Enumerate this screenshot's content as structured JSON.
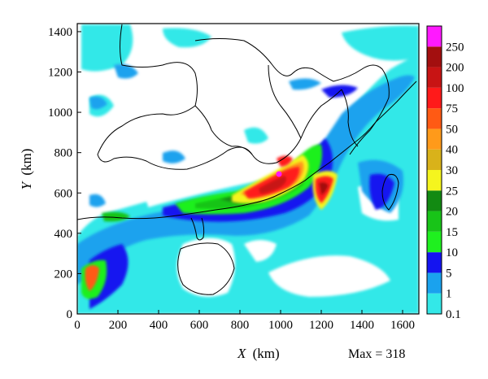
{
  "chart_data": {
    "type": "heatmap",
    "title": "",
    "xlabel_var": "X",
    "xlabel_unit": "(km)",
    "ylabel_var": "Y",
    "ylabel_unit": "(km)",
    "xlim": [
      0,
      1680
    ],
    "ylim": [
      0,
      1440
    ],
    "x_ticks": [
      0,
      200,
      400,
      600,
      800,
      1000,
      1200,
      1400,
      1600
    ],
    "y_ticks": [
      0,
      200,
      400,
      600,
      800,
      1000,
      1200,
      1400
    ],
    "annotation": "Max = 318",
    "colorbar": {
      "levels": [
        "0.1",
        "1",
        "5",
        "10",
        "15",
        "20",
        "25",
        "30",
        "40",
        "50",
        "75",
        "100",
        "200",
        "250"
      ],
      "colors": [
        "#33e8e8",
        "#1aa2ee",
        "#1414f0",
        "#1ff01f",
        "#18c418",
        "#128a12",
        "#f5f51e",
        "#d9b21a",
        "#ff9a1a",
        "#ff5a14",
        "#ff1a1a",
        "#c81414",
        "#a30f0f",
        "#ff19ff"
      ]
    },
    "max_value": 318
  }
}
